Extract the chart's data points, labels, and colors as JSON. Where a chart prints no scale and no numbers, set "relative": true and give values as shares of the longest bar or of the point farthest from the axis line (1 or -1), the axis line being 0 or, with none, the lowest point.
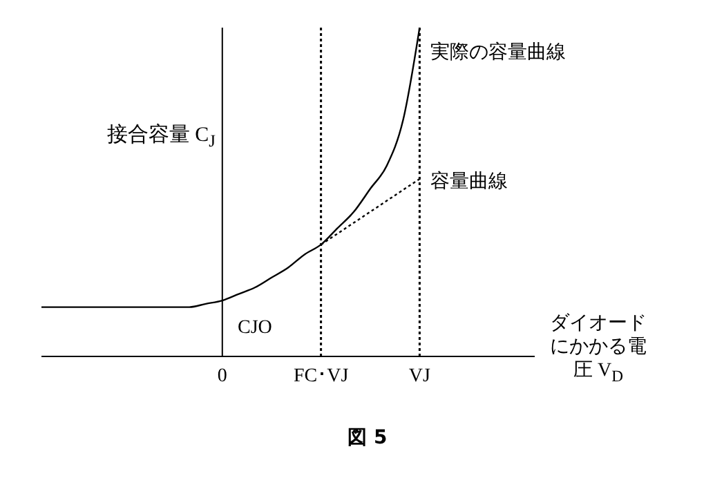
{
  "chart_data": {
    "type": "line",
    "title": "図 5",
    "ylabel": "接合容量 C$_{J}$",
    "xlabel": "ダイオードにかかる電圧 V$_{D}$",
    "relative": true,
    "categories": [
      null,
      null,
      null,
      null,
      null,
      null,
      null,
      null,
      null,
      null,
      null,
      "0",
      null,
      null,
      null,
      null,
      null,
      "FC･VJ",
      null,
      null,
      null,
      null,
      null,
      "VJ",
      null,
      null,
      null,
      null,
      null,
      null,
      null
    ],
    "series": [
      {
        "name": "実際の容量曲線",
        "color": "#000000",
        "line_style": "solid",
        "values": [
          0.15,
          0.15,
          0.15,
          0.15,
          0.15,
          0.15,
          0.15,
          0.15,
          0.15,
          0.15,
          0.16,
          0.17,
          0.19,
          0.21,
          0.24,
          0.27,
          0.31,
          0.34,
          0.39,
          0.44,
          0.51,
          0.58,
          0.72,
          1.0,
          null,
          null,
          null,
          null,
          null,
          null,
          null
        ]
      },
      {
        "name": "容量曲線",
        "color": "#000000",
        "line_style": "dotted",
        "values": [
          null,
          null,
          null,
          null,
          null,
          null,
          null,
          null,
          null,
          null,
          null,
          null,
          null,
          null,
          null,
          null,
          null,
          0.34,
          null,
          null,
          null,
          null,
          null,
          0.54,
          null,
          null,
          null,
          null,
          null,
          null,
          null
        ]
      }
    ],
    "ref_lines": [
      {
        "axis": "x",
        "value": "FC･VJ",
        "line_style": "dotted",
        "color": "#000000"
      },
      {
        "axis": "x",
        "value": "VJ",
        "line_style": "dotted",
        "color": "#000000"
      }
    ],
    "annotations": [
      "CJO"
    ],
    "legend": false,
    "grid": false,
    "marker": "none"
  }
}
